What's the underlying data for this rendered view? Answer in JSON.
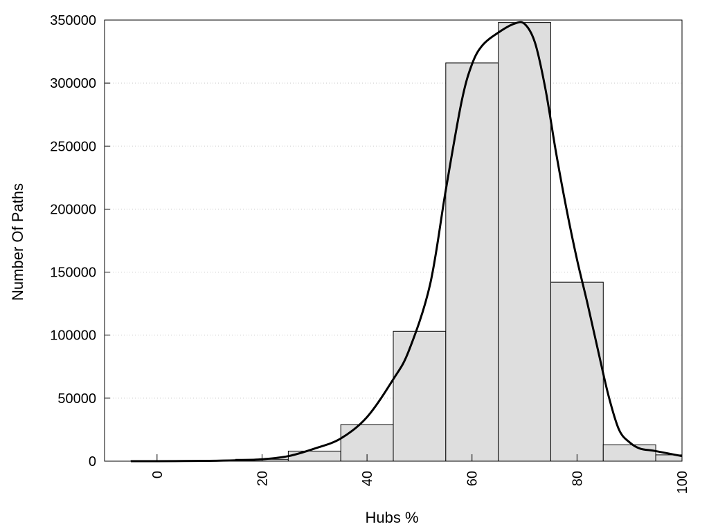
{
  "chart_data": {
    "type": "bar",
    "xlabel": "Hubs %",
    "ylabel": "Number Of Paths",
    "xlim": [
      -10,
      100
    ],
    "ylim": [
      0,
      350000
    ],
    "grid": "horizontal-dotted",
    "x_ticks": [
      0,
      20,
      40,
      60,
      80,
      100
    ],
    "y_ticks": [
      0,
      50000,
      100000,
      150000,
      200000,
      250000,
      300000,
      350000
    ],
    "bars": {
      "bin_width": 10,
      "centers": [
        0,
        10,
        20,
        30,
        40,
        50,
        60,
        70,
        80,
        90,
        100
      ],
      "values": [
        200,
        300,
        1500,
        8000,
        29000,
        103000,
        316000,
        348000,
        142000,
        13000,
        5000
      ]
    },
    "series": [
      {
        "type": "line",
        "x": [
          -5,
          0,
          10,
          15,
          20,
          25,
          30,
          35,
          40,
          45,
          48,
          52,
          55,
          58,
          60,
          62,
          65,
          68,
          70,
          72,
          74,
          76,
          78,
          80,
          82,
          84,
          86,
          88,
          90,
          92,
          95,
          100
        ],
        "y": [
          0,
          0,
          300,
          700,
          1500,
          4000,
          10000,
          18000,
          35000,
          65000,
          88000,
          140000,
          215000,
          285000,
          315000,
          330000,
          340000,
          347000,
          347000,
          332000,
          295000,
          245000,
          200000,
          160000,
          125000,
          88000,
          52000,
          25000,
          15000,
          10000,
          8000,
          4000
        ]
      }
    ]
  }
}
